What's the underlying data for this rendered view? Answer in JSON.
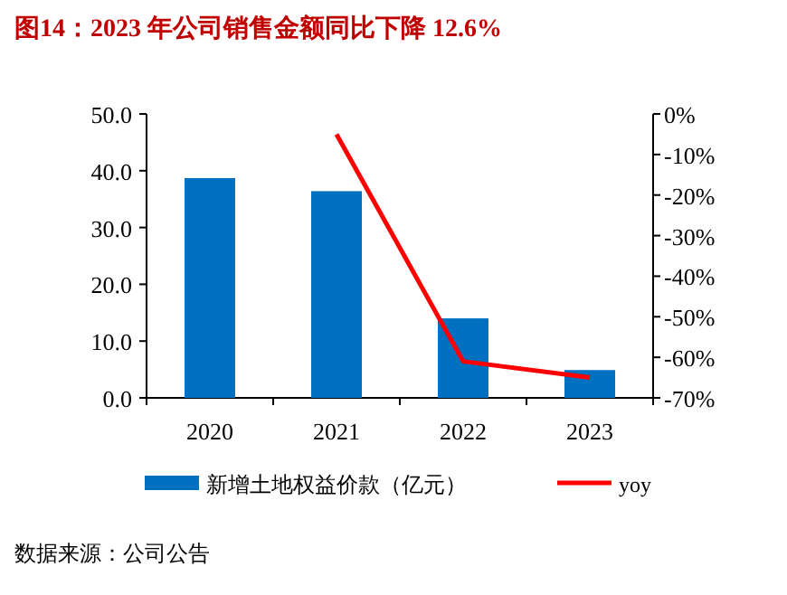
{
  "chart_data": {
    "type": "bar",
    "title": "图14：2023 年公司销售金额同比下降 12.6%",
    "categories": [
      "2020",
      "2021",
      "2022",
      "2023"
    ],
    "series": [
      {
        "name": "新增土地权益价款（亿元）",
        "color": "#0070c0",
        "values": [
          38.7,
          36.4,
          14.0,
          4.9
        ]
      },
      {
        "name": "yoy",
        "type": "line",
        "axis": "y2",
        "color": "#ff0000",
        "values": [
          null,
          -5,
          -61,
          -65
        ]
      }
    ],
    "ylim": [
      0,
      50
    ],
    "yticks": [
      {
        "value": 0,
        "label": "0.0"
      },
      {
        "value": 10,
        "label": "10.0"
      },
      {
        "value": 20,
        "label": "20.0"
      },
      {
        "value": 30,
        "label": "30.0"
      },
      {
        "value": 40,
        "label": "40.0"
      },
      {
        "value": 50,
        "label": "50.0"
      }
    ],
    "y2lim": [
      -70,
      0
    ],
    "y2ticks": [
      {
        "value": 0,
        "label": "0%"
      },
      {
        "value": -10,
        "label": "-10%"
      },
      {
        "value": -20,
        "label": "-20%"
      },
      {
        "value": -30,
        "label": "-30%"
      },
      {
        "value": -40,
        "label": "-40%"
      },
      {
        "value": -50,
        "label": "-50%"
      },
      {
        "value": -60,
        "label": "-60%"
      },
      {
        "value": -70,
        "label": "-70%"
      }
    ],
    "legend": "bottom",
    "grid": false,
    "annotations": [
      "数据来源：公司公告"
    ]
  }
}
